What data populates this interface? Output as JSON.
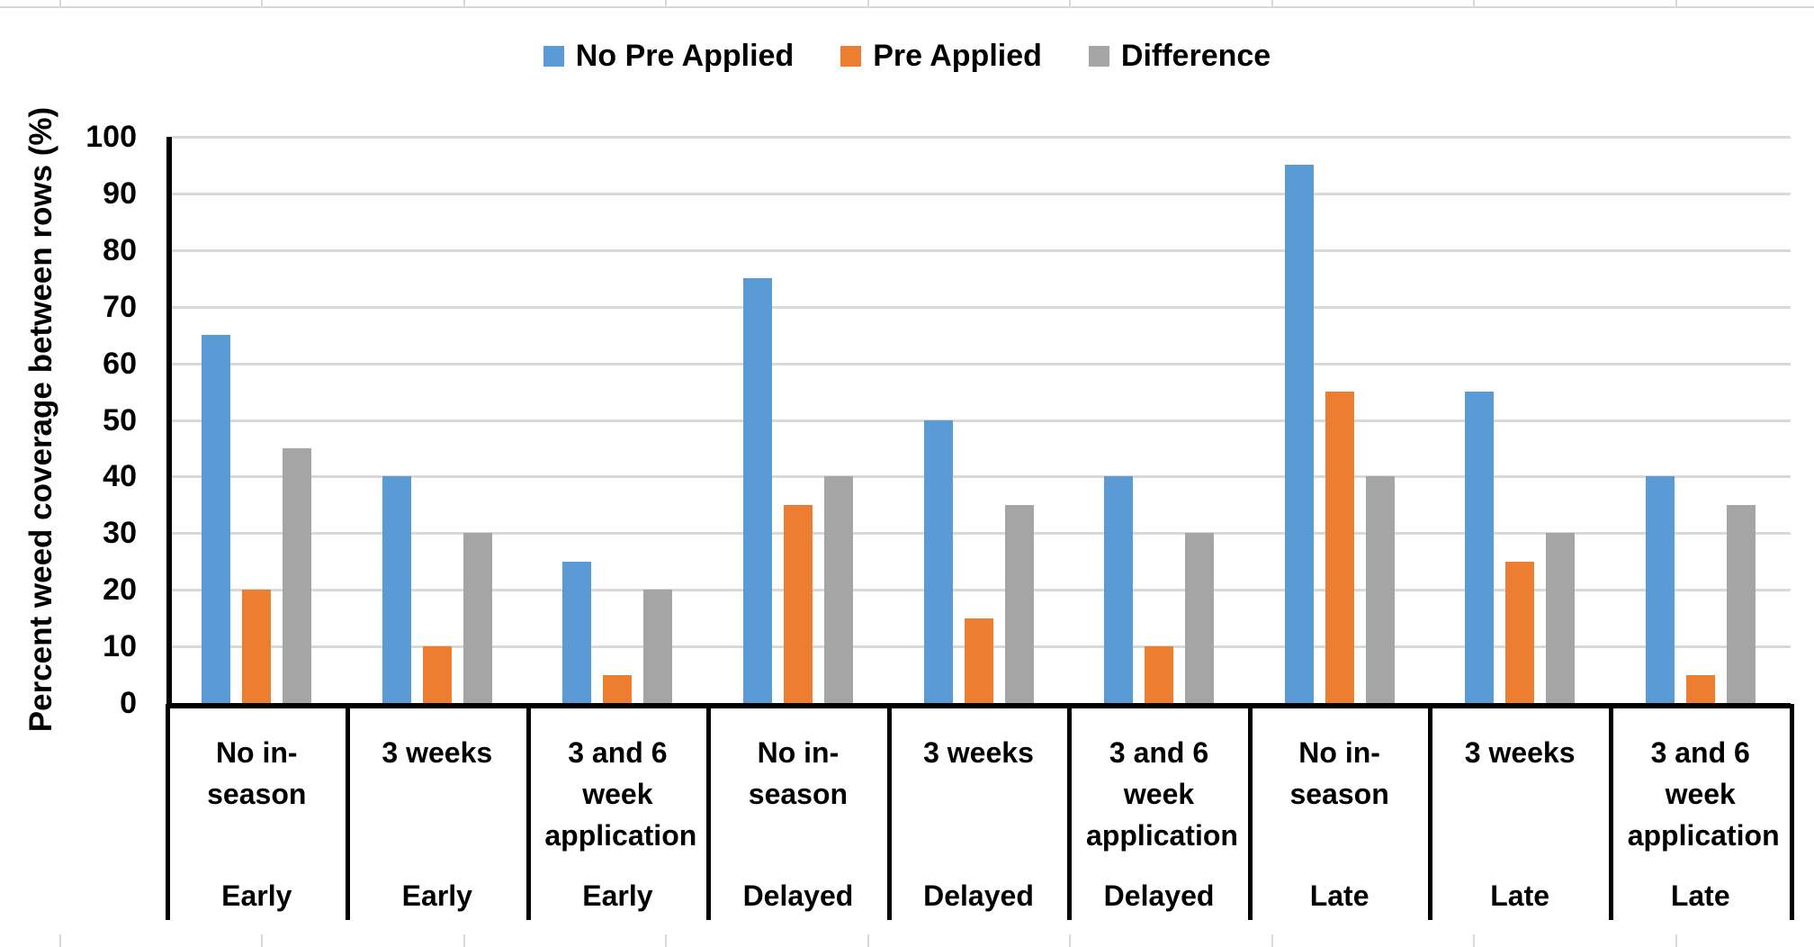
{
  "legend": {
    "items": [
      {
        "label": "No Pre Applied",
        "color": "#5B9BD5"
      },
      {
        "label": "Pre Applied",
        "color": "#ED7D31"
      },
      {
        "label": "Difference",
        "color": "#A5A5A5"
      }
    ]
  },
  "y_axis": {
    "title": "Percent weed coverage between rows (%)",
    "min": 0,
    "max": 100,
    "step": 10,
    "tick_labels": [
      "0",
      "10",
      "20",
      "30",
      "40",
      "50",
      "60",
      "70",
      "80",
      "90",
      "100"
    ]
  },
  "x_axis": {
    "groups": [
      {
        "treatment": "No in-season",
        "timing": "Early"
      },
      {
        "treatment": "3 weeks",
        "timing": "Early"
      },
      {
        "treatment": "3 and 6 week application",
        "timing": "Early"
      },
      {
        "treatment": "No in-season",
        "timing": "Delayed"
      },
      {
        "treatment": "3 weeks",
        "timing": "Delayed"
      },
      {
        "treatment": "3 and 6 week application",
        "timing": "Delayed"
      },
      {
        "treatment": "No in-season",
        "timing": "Late"
      },
      {
        "treatment": "3 weeks",
        "timing": "Late"
      },
      {
        "treatment": "3 and 6 week application",
        "timing": "Late"
      }
    ]
  },
  "chart_data": {
    "type": "bar",
    "title": "",
    "xlabel": "",
    "ylabel": "Percent weed coverage between rows (%)",
    "ylim": [
      0,
      100
    ],
    "ytick_step": 10,
    "grid": true,
    "legend_position": "top",
    "categories": [
      "No in-season",
      "3 weeks",
      "3 and 6 week application",
      "No in-season",
      "3 weeks",
      "3 and 6 week application",
      "No in-season",
      "3 weeks",
      "3 and 6 week application"
    ],
    "category_groups": [
      "Early",
      "Early",
      "Early",
      "Delayed",
      "Delayed",
      "Delayed",
      "Late",
      "Late",
      "Late"
    ],
    "series": [
      {
        "name": "No Pre Applied",
        "color": "#5B9BD5",
        "values": [
          65,
          40,
          25,
          75,
          50,
          40,
          95,
          55,
          40
        ]
      },
      {
        "name": "Pre Applied",
        "color": "#ED7D31",
        "values": [
          20,
          10,
          5,
          35,
          15,
          10,
          55,
          25,
          5
        ]
      },
      {
        "name": "Difference",
        "color": "#A5A5A5",
        "values": [
          45,
          30,
          20,
          40,
          35,
          30,
          40,
          30,
          35
        ]
      }
    ]
  }
}
